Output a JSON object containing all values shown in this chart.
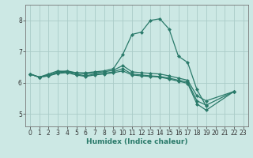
{
  "xlabel": "Humidex (Indice chaleur)",
  "xlim": [
    -0.5,
    23.5
  ],
  "ylim": [
    4.6,
    8.5
  ],
  "yticks": [
    5,
    6,
    7,
    8
  ],
  "xticks": [
    0,
    1,
    2,
    3,
    4,
    5,
    6,
    7,
    8,
    9,
    10,
    11,
    12,
    13,
    14,
    15,
    16,
    17,
    18,
    19,
    20,
    21,
    22,
    23
  ],
  "bg_color": "#cce8e4",
  "grid_color": "#aaccc8",
  "line_color": "#2a7a6a",
  "line1_x": [
    0,
    1,
    2,
    3,
    4,
    5,
    6,
    7,
    8,
    9,
    10,
    11,
    12,
    13,
    14,
    15,
    16,
    17,
    18,
    19,
    20,
    22
  ],
  "line1_y": [
    6.28,
    6.18,
    6.28,
    6.38,
    6.35,
    6.32,
    6.32,
    6.35,
    6.38,
    6.45,
    6.9,
    7.55,
    7.62,
    8.0,
    8.05,
    7.72,
    6.85,
    6.65,
    5.78,
    5.25,
    null,
    5.72
  ],
  "line2_x": [
    0,
    1,
    2,
    3,
    4,
    5,
    6,
    7,
    8,
    9,
    10,
    11,
    12,
    13,
    14,
    15,
    16,
    17,
    18,
    19,
    22
  ],
  "line2_y": [
    6.28,
    6.18,
    6.25,
    6.35,
    6.38,
    6.32,
    6.28,
    6.32,
    6.35,
    6.4,
    6.55,
    6.35,
    6.32,
    6.3,
    6.28,
    6.22,
    6.15,
    6.08,
    5.58,
    5.42,
    5.72
  ],
  "line3_x": [
    0,
    1,
    2,
    3,
    4,
    5,
    6,
    7,
    8,
    9,
    10,
    11,
    12,
    13,
    14,
    15,
    16,
    17,
    18,
    19,
    22
  ],
  "line3_y": [
    6.28,
    6.18,
    6.22,
    6.32,
    6.35,
    6.28,
    6.22,
    6.28,
    6.3,
    6.35,
    6.45,
    6.28,
    6.25,
    6.22,
    6.2,
    6.15,
    6.08,
    6.02,
    5.42,
    5.28,
    5.72
  ],
  "line4_x": [
    0,
    1,
    2,
    3,
    4,
    5,
    6,
    7,
    8,
    9,
    10,
    11,
    12,
    13,
    14,
    15,
    16,
    17,
    18,
    19,
    22
  ],
  "line4_y": [
    6.28,
    6.18,
    6.22,
    6.3,
    6.32,
    6.25,
    6.2,
    6.25,
    6.28,
    6.32,
    6.38,
    6.25,
    6.22,
    6.2,
    6.18,
    6.12,
    6.05,
    5.98,
    5.32,
    5.12,
    5.72
  ]
}
